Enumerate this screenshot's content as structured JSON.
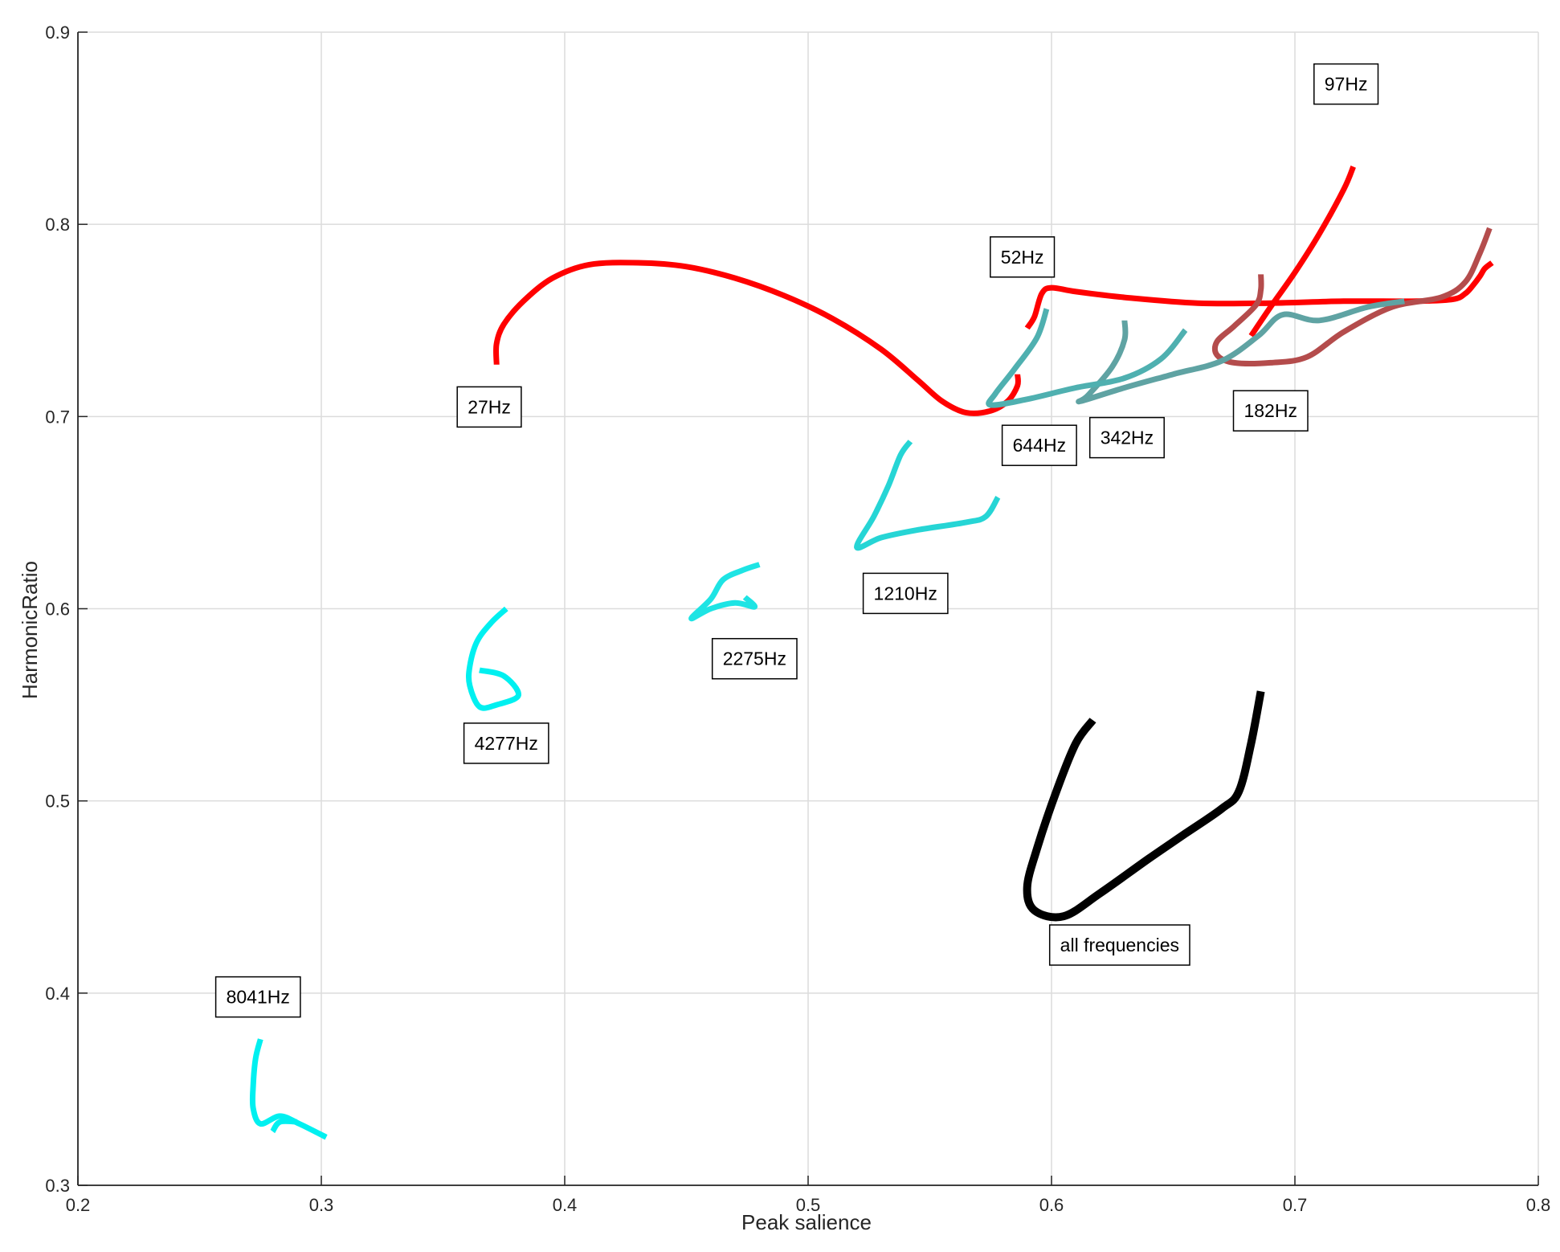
{
  "chart_data": {
    "type": "line",
    "title": "",
    "xlabel": "Peak salience",
    "ylabel": "HarmonicRatio",
    "xlim": [
      0.2,
      0.8
    ],
    "ylim": [
      0.3,
      0.9
    ],
    "x_ticks": [
      "0.2",
      "0.3",
      "0.4",
      "0.5",
      "0.6",
      "0.7",
      "0.8"
    ],
    "y_ticks": [
      "0.3",
      "0.4",
      "0.5",
      "0.6",
      "0.7",
      "0.8",
      "0.9"
    ],
    "grid": true,
    "legend": "none",
    "series": [
      {
        "name": "27Hz",
        "color": "#ff0000",
        "points": [
          [
            0.372,
            0.727
          ],
          [
            0.372,
            0.738
          ],
          [
            0.375,
            0.748
          ],
          [
            0.383,
            0.76
          ],
          [
            0.395,
            0.772
          ],
          [
            0.41,
            0.779
          ],
          [
            0.43,
            0.78
          ],
          [
            0.45,
            0.778
          ],
          [
            0.47,
            0.772
          ],
          [
            0.49,
            0.763
          ],
          [
            0.51,
            0.751
          ],
          [
            0.53,
            0.735
          ],
          [
            0.545,
            0.719
          ],
          [
            0.555,
            0.708
          ],
          [
            0.565,
            0.702
          ],
          [
            0.575,
            0.703
          ],
          [
            0.582,
            0.708
          ],
          [
            0.586,
            0.716
          ],
          [
            0.586,
            0.722
          ]
        ]
      },
      {
        "name": "52Hz",
        "color": "#ff0000",
        "points": [
          [
            0.59,
            0.746
          ],
          [
            0.593,
            0.752
          ],
          [
            0.596,
            0.764
          ],
          [
            0.6,
            0.767
          ],
          [
            0.61,
            0.765
          ],
          [
            0.63,
            0.762
          ],
          [
            0.66,
            0.759
          ],
          [
            0.69,
            0.759
          ],
          [
            0.72,
            0.76
          ],
          [
            0.75,
            0.76
          ],
          [
            0.765,
            0.761
          ],
          [
            0.77,
            0.764
          ],
          [
            0.773,
            0.768
          ],
          [
            0.776,
            0.773
          ],
          [
            0.778,
            0.777
          ],
          [
            0.781,
            0.78
          ]
        ]
      },
      {
        "name": "97Hz",
        "color": "#ff0000",
        "points": [
          [
            0.682,
            0.742
          ],
          [
            0.69,
            0.757
          ],
          [
            0.7,
            0.775
          ],
          [
            0.71,
            0.795
          ],
          [
            0.72,
            0.818
          ],
          [
            0.724,
            0.83
          ]
        ]
      },
      {
        "name": "182Hz",
        "color": "#b44c4c",
        "points": [
          [
            0.686,
            0.774
          ],
          [
            0.686,
            0.766
          ],
          [
            0.684,
            0.758
          ],
          [
            0.675,
            0.747
          ],
          [
            0.668,
            0.739
          ],
          [
            0.668,
            0.732
          ],
          [
            0.675,
            0.728
          ],
          [
            0.69,
            0.728
          ],
          [
            0.705,
            0.731
          ],
          [
            0.72,
            0.744
          ],
          [
            0.74,
            0.757
          ],
          [
            0.76,
            0.762
          ],
          [
            0.77,
            0.77
          ],
          [
            0.776,
            0.785
          ],
          [
            0.78,
            0.798
          ]
        ]
      },
      {
        "name": "342Hz",
        "color": "#5fa3a3",
        "points": [
          [
            0.63,
            0.75
          ],
          [
            0.63,
            0.74
          ],
          [
            0.625,
            0.726
          ],
          [
            0.615,
            0.711
          ],
          [
            0.612,
            0.708
          ],
          [
            0.63,
            0.715
          ],
          [
            0.65,
            0.722
          ],
          [
            0.67,
            0.729
          ],
          [
            0.685,
            0.742
          ],
          [
            0.695,
            0.753
          ],
          [
            0.71,
            0.75
          ],
          [
            0.73,
            0.757
          ],
          [
            0.745,
            0.76
          ]
        ]
      },
      {
        "name": "644Hz",
        "color": "#4fb0b0",
        "points": [
          [
            0.598,
            0.756
          ],
          [
            0.594,
            0.741
          ],
          [
            0.585,
            0.725
          ],
          [
            0.577,
            0.712
          ],
          [
            0.575,
            0.706
          ],
          [
            0.59,
            0.709
          ],
          [
            0.61,
            0.715
          ],
          [
            0.63,
            0.72
          ],
          [
            0.645,
            0.73
          ],
          [
            0.655,
            0.745
          ]
        ]
      },
      {
        "name": "1210Hz",
        "color": "#26d5d5",
        "points": [
          [
            0.542,
            0.687
          ],
          [
            0.538,
            0.68
          ],
          [
            0.533,
            0.664
          ],
          [
            0.527,
            0.648
          ],
          [
            0.52,
            0.632
          ],
          [
            0.53,
            0.637
          ],
          [
            0.545,
            0.641
          ],
          [
            0.565,
            0.645
          ],
          [
            0.573,
            0.648
          ],
          [
            0.578,
            0.658
          ]
        ]
      },
      {
        "name": "2275Hz",
        "color": "#1ee4e4",
        "points": [
          [
            0.48,
            0.623
          ],
          [
            0.473,
            0.62
          ],
          [
            0.465,
            0.615
          ],
          [
            0.46,
            0.605
          ],
          [
            0.452,
            0.595
          ],
          [
            0.46,
            0.6
          ],
          [
            0.47,
            0.603
          ],
          [
            0.478,
            0.601
          ],
          [
            0.474,
            0.606
          ]
        ]
      },
      {
        "name": "4277Hz",
        "color": "#00f0f0",
        "points": [
          [
            0.376,
            0.6
          ],
          [
            0.37,
            0.593
          ],
          [
            0.364,
            0.583
          ],
          [
            0.361,
            0.57
          ],
          [
            0.361,
            0.56
          ],
          [
            0.365,
            0.549
          ],
          [
            0.372,
            0.55
          ],
          [
            0.381,
            0.555
          ],
          [
            0.375,
            0.565
          ],
          [
            0.365,
            0.568
          ]
        ]
      },
      {
        "name": "8041Hz",
        "color": "#00f0f0",
        "points": [
          [
            0.275,
            0.376
          ],
          [
            0.273,
            0.366
          ],
          [
            0.272,
            0.352
          ],
          [
            0.272,
            0.34
          ],
          [
            0.275,
            0.332
          ],
          [
            0.283,
            0.336
          ],
          [
            0.291,
            0.332
          ],
          [
            0.302,
            0.325
          ]
        ]
      },
      {
        "name": "8041Hz",
        "color": "#00f0f0",
        "points": [
          [
            0.28,
            0.328
          ],
          [
            0.283,
            0.333
          ],
          [
            0.29,
            0.333
          ]
        ]
      },
      {
        "name": "all frequencies",
        "color": "#000000",
        "points": [
          [
            0.617,
            0.542
          ],
          [
            0.61,
            0.53
          ],
          [
            0.602,
            0.505
          ],
          [
            0.594,
            0.475
          ],
          [
            0.59,
            0.455
          ],
          [
            0.593,
            0.443
          ],
          [
            0.605,
            0.44
          ],
          [
            0.62,
            0.452
          ],
          [
            0.64,
            0.47
          ],
          [
            0.655,
            0.483
          ],
          [
            0.67,
            0.496
          ],
          [
            0.677,
            0.505
          ],
          [
            0.682,
            0.53
          ],
          [
            0.686,
            0.557
          ]
        ]
      }
    ],
    "annotations": [
      {
        "text": "97Hz",
        "x": 0.721,
        "y": 0.873
      },
      {
        "text": "52Hz",
        "x": 0.588,
        "y": 0.783
      },
      {
        "text": "27Hz",
        "x": 0.369,
        "y": 0.705
      },
      {
        "text": "182Hz",
        "x": 0.69,
        "y": 0.703
      },
      {
        "text": "644Hz",
        "x": 0.595,
        "y": 0.685
      },
      {
        "text": "342Hz",
        "x": 0.631,
        "y": 0.689
      },
      {
        "text": "1210Hz",
        "x": 0.54,
        "y": 0.608
      },
      {
        "text": "2275Hz",
        "x": 0.478,
        "y": 0.574
      },
      {
        "text": "4277Hz",
        "x": 0.376,
        "y": 0.53
      },
      {
        "text": "8041Hz",
        "x": 0.274,
        "y": 0.398
      },
      {
        "text": "all frequencies",
        "x": 0.628,
        "y": 0.425
      }
    ]
  }
}
